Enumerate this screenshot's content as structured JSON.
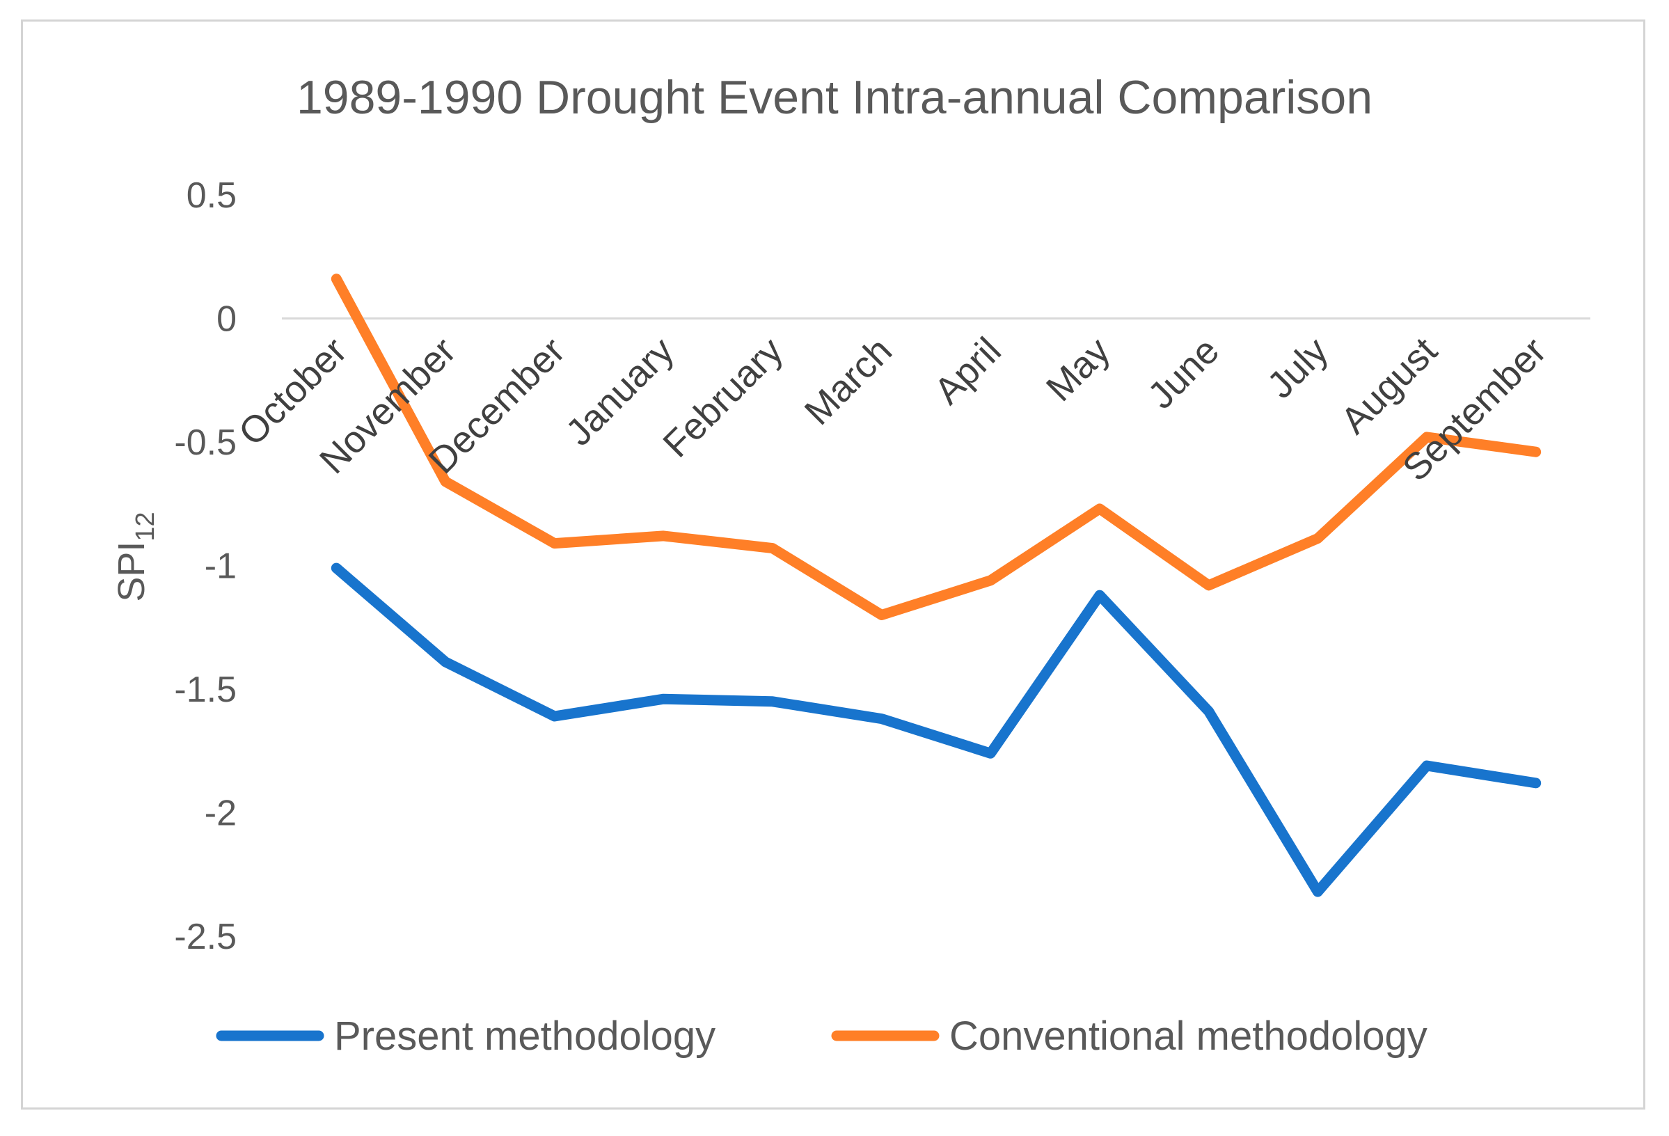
{
  "chart_data": {
    "type": "line",
    "title": "1989-1990 Drought Event Intra-annual Comparison",
    "ylabel": "SPI",
    "ylabel_subscript": "12",
    "xlabel": "",
    "categories": [
      "October",
      "November",
      "December",
      "January",
      "February",
      "March",
      "April",
      "May",
      "June",
      "July",
      "August",
      "September"
    ],
    "ylim": [
      -2.5,
      0.5
    ],
    "yticks": [
      0.5,
      0,
      -0.5,
      -1,
      -1.5,
      -2,
      -2.5
    ],
    "ytick_labels": [
      "0.5",
      "0",
      "-0.5",
      "-1",
      "-1.5",
      "-2",
      "-2.5"
    ],
    "grid": false,
    "zero_line": true,
    "legend_position": "bottom",
    "series": [
      {
        "name": "Present methodology",
        "color": "#1874CD",
        "values": [
          -1.01,
          -1.39,
          -1.61,
          -1.54,
          -1.55,
          -1.62,
          -1.76,
          -1.12,
          -1.59,
          -2.32,
          -1.81,
          -1.88
        ]
      },
      {
        "name": "Conventional methodology",
        "color": "#FF7F27",
        "values": [
          0.16,
          -0.66,
          -0.91,
          -0.88,
          -0.93,
          -1.2,
          -1.06,
          -0.77,
          -1.08,
          -0.89,
          -0.48,
          -0.54
        ]
      }
    ]
  }
}
